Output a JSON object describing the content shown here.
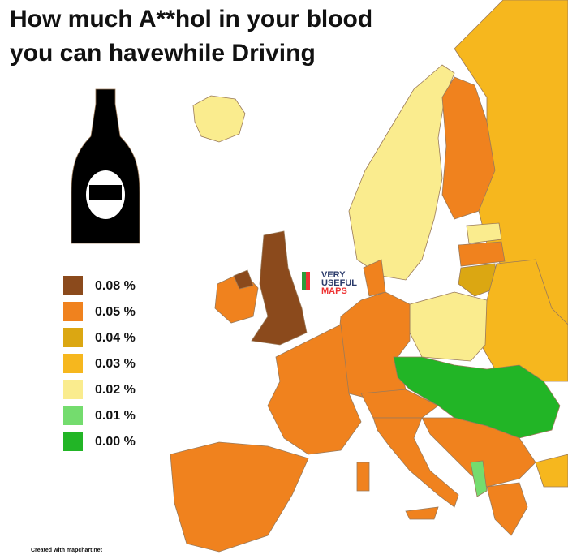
{
  "header": {
    "title_lines": [
      "How much A**hol in your blood",
      "you can havewhile Driving"
    ]
  },
  "legend": {
    "items": [
      {
        "label": "0.08 %",
        "color": "#8b4a1c"
      },
      {
        "label": "0.05 %",
        "color": "#f0821e"
      },
      {
        "label": "0.04 %",
        "color": "#dba712"
      },
      {
        "label": "0.03 %",
        "color": "#f6b71e"
      },
      {
        "label": "0.02 %",
        "color": "#faec8e"
      },
      {
        "label": "0.01 %",
        "color": "#74dc6e"
      },
      {
        "label": "0.00 %",
        "color": "#22b526"
      }
    ]
  },
  "logo": {
    "lines": [
      "VERY",
      "USEFUL",
      "MAPS"
    ]
  },
  "footer": {
    "credit": "Created with mapchart.net"
  }
}
